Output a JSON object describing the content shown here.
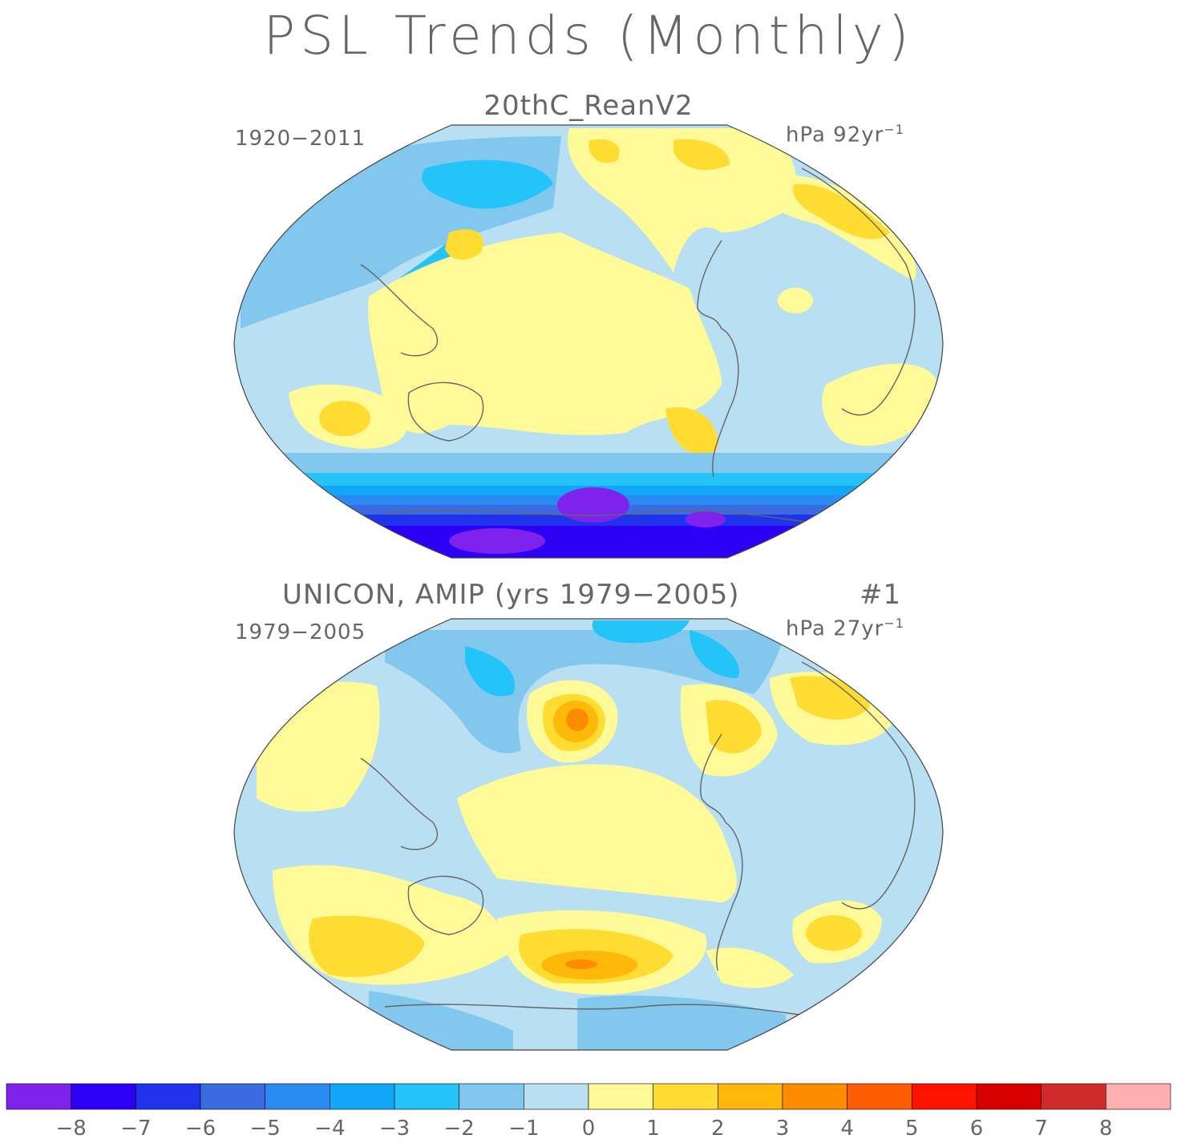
{
  "figure": {
    "title": "PSL Trends (Monthly)",
    "panels": [
      {
        "subtitle": "20thC_ReanV2",
        "period": "1920−2011",
        "units_prefix": "hPa 92yr",
        "units_exp": "−1"
      },
      {
        "subtitle": "UNICON, AMIP (yrs 1979−2005)",
        "run": "#1",
        "period": "1979−2005",
        "units_prefix": "hPa 27yr",
        "units_exp": "−1"
      }
    ]
  },
  "colorbar": {
    "colors": [
      "#7f22ee",
      "#2b00f5",
      "#1f32ec",
      "#3a6be0",
      "#2a8bf3",
      "#14a6f6",
      "#24c3f8",
      "#82c8ee",
      "#b8e0f2",
      "#fefa98",
      "#fedc32",
      "#feb80a",
      "#fd8c00",
      "#fd5c00",
      "#fe1200",
      "#d80000",
      "#d02a2a",
      "#feb0b0"
    ],
    "labels": [
      "−8",
      "−7",
      "−6",
      "−5",
      "−4",
      "−3",
      "−2",
      "−1",
      "0",
      "1",
      "2",
      "3",
      "4",
      "5",
      "6",
      "7",
      "8"
    ]
  }
}
